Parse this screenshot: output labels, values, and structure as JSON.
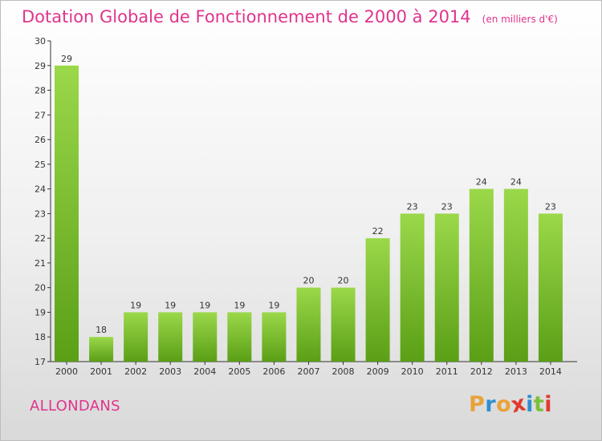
{
  "header": {
    "title": "Dotation Globale de Fonctionnement de 2000 à 2014",
    "unit": "(en milliers d'€)"
  },
  "footer": {
    "commune": "ALLONDANS",
    "logo_letters": [
      "P",
      "r",
      "o",
      "x",
      "i",
      "t",
      "i"
    ]
  },
  "colors": {
    "title": "#e0348c",
    "bar_top": "#9bd84a",
    "bar_bottom": "#5a9f16",
    "logo": [
      "#e8a33a",
      "#2f8fd0",
      "#e8a33a",
      "#e03a2e",
      "#2f8fd0",
      "#7cbf3a",
      "#e03a2e"
    ]
  },
  "chart_data": {
    "type": "bar",
    "categories": [
      "2000",
      "2001",
      "2002",
      "2003",
      "2004",
      "2005",
      "2006",
      "2007",
      "2008",
      "2009",
      "2010",
      "2011",
      "2012",
      "2013",
      "2014"
    ],
    "values": [
      29,
      18,
      19,
      19,
      19,
      19,
      19,
      20,
      20,
      22,
      23,
      23,
      24,
      24,
      23
    ],
    "ylim": [
      17,
      30
    ],
    "yticks": [
      17,
      18,
      19,
      20,
      21,
      22,
      23,
      24,
      25,
      26,
      27,
      28,
      29,
      30
    ],
    "grid": false,
    "xlabel": "",
    "ylabel": ""
  }
}
